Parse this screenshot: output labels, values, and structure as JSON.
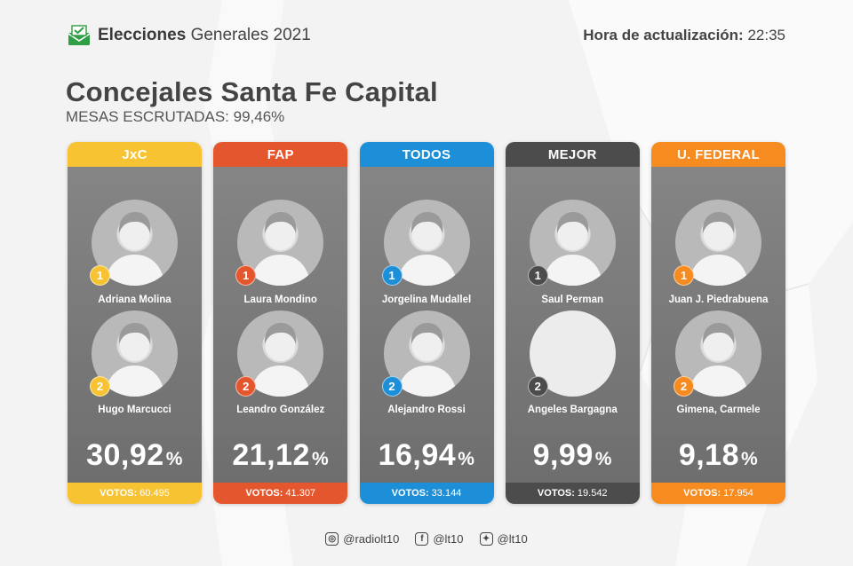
{
  "header": {
    "brand_bold": "Elecciones",
    "brand_rest": "Generales 2021",
    "update_label": "Hora de actualización:",
    "update_time": "22:35"
  },
  "title": "Concejales Santa Fe Capital",
  "subtitle": "MESAS ESCRUTADAS: 99,46%",
  "cards": [
    {
      "party": "JxC",
      "color": "#f7c332",
      "percent": "30,92",
      "percent_sign": "%",
      "votes_label": "VOTOS:",
      "votes": "60.495",
      "candidates": [
        {
          "rank": "1",
          "name": "Adriana Molina",
          "photo": "candidate-photo"
        },
        {
          "rank": "2",
          "name": "Hugo Marcucci",
          "photo": "candidate-photo"
        }
      ]
    },
    {
      "party": "FAP",
      "color": "#e4572e",
      "percent": "21,12",
      "percent_sign": "%",
      "votes_label": "VOTOS:",
      "votes": "41.307",
      "candidates": [
        {
          "rank": "1",
          "name": "Laura Mondino",
          "photo": "candidate-photo"
        },
        {
          "rank": "2",
          "name": "Leandro González",
          "photo": "candidate-photo"
        }
      ]
    },
    {
      "party": "TODOS",
      "color": "#1d8fd8",
      "percent": "16,94",
      "percent_sign": "%",
      "votes_label": "VOTOS:",
      "votes": "33.144",
      "candidates": [
        {
          "rank": "1",
          "name": "Jorgelina Mudallel",
          "photo": "candidate-photo"
        },
        {
          "rank": "2",
          "name": "Alejandro Rossi",
          "photo": "candidate-photo"
        }
      ]
    },
    {
      "party": "MEJOR",
      "color": "#4c4c4c",
      "percent": "9,99",
      "percent_sign": "%",
      "votes_label": "VOTOS:",
      "votes": "19.542",
      "candidates": [
        {
          "rank": "1",
          "name": "Saul Perman",
          "photo": "candidate-photo"
        },
        {
          "rank": "2",
          "name": "Angeles Bargagna",
          "photo": "empty"
        }
      ]
    },
    {
      "party": "U. FEDERAL",
      "color": "#f68b1f",
      "percent": "9,18",
      "percent_sign": "%",
      "votes_label": "VOTOS:",
      "votes": "17.954",
      "candidates": [
        {
          "rank": "1",
          "name": "Juan J. Piedrabuena",
          "photo": "candidate-photo"
        },
        {
          "rank": "2",
          "name": "Gimena, Carmele",
          "photo": "candidate-photo"
        }
      ]
    }
  ],
  "social": [
    {
      "icon": "instagram-icon",
      "handle": "@radiolt10"
    },
    {
      "icon": "facebook-icon",
      "handle": "@lt10"
    },
    {
      "icon": "twitter-icon",
      "handle": "@lt10"
    }
  ]
}
